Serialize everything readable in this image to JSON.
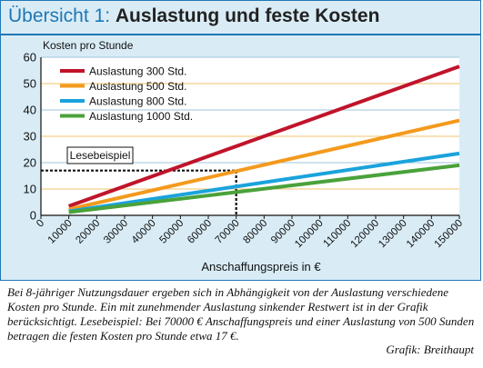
{
  "header": {
    "title_prefix": "Übersicht 1:",
    "title_main": "Auslastung und feste Kosten"
  },
  "chart_data": {
    "type": "line",
    "ylabel": "Kosten pro Stunde",
    "xlabel": "Anschaffungspreis in €",
    "xlim": [
      0,
      150000
    ],
    "ylim": [
      0,
      60
    ],
    "xticks": [
      0,
      10000,
      20000,
      30000,
      40000,
      50000,
      60000,
      70000,
      80000,
      90000,
      100000,
      110000,
      120000,
      130000,
      140000,
      150000
    ],
    "yticks": [
      0,
      10,
      20,
      30,
      40,
      50,
      60
    ],
    "grid": true,
    "legend": "top-left",
    "series": [
      {
        "name": "Auslastung 300 Std.",
        "color": "#c0142b",
        "x": [
          10000,
          150000
        ],
        "y": [
          3.5,
          56.5
        ]
      },
      {
        "name": "Auslastung 500 Std.",
        "color": "#f39a1d",
        "x": [
          10000,
          150000
        ],
        "y": [
          2.3,
          36
        ]
      },
      {
        "name": "Auslastung 800 Std.",
        "color": "#1aa3dc",
        "x": [
          10000,
          150000
        ],
        "y": [
          1.5,
          23.5
        ]
      },
      {
        "name": "Auslastung 1000 Std.",
        "color": "#4aa23a",
        "x": [
          10000,
          150000
        ],
        "y": [
          1.2,
          19
        ]
      }
    ],
    "annotation": {
      "label": "Lesebeispiel",
      "x": 70000,
      "y": 17
    }
  },
  "caption": "Bei 8-jähriger Nutzungsdauer ergeben sich in Abhängigkeit von der Auslastung verschiedene Kosten pro Stunde. Ein mit zunehmender Auslastung sinkender Restwert ist in der Grafik berücksichtigt. Lesebeispiel: Bei 70000 € Anschaffungspreis und einer Auslastung von 500 Sunden betragen die festen Kosten pro Stunde etwa 17 €.",
  "credit": "Grafik: Breithaupt"
}
